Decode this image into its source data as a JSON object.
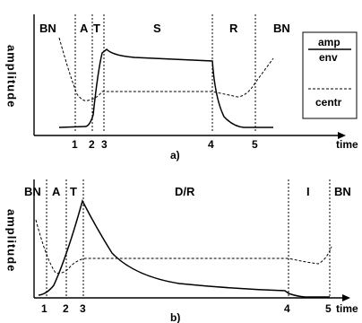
{
  "panels": [
    {
      "caption": "a)",
      "x_axis_label": "time",
      "y_axis_label": "amplitude",
      "segments": [
        "BN",
        "A",
        "T",
        "S",
        "R",
        "BN"
      ],
      "markers": [
        "1",
        "2",
        "3",
        "4",
        "5"
      ],
      "legend": {
        "top": "amp",
        "middle": "env",
        "bottom": "centr"
      }
    },
    {
      "caption": "b)",
      "x_axis_label": "time",
      "y_axis_label": "amplitude",
      "segments": [
        "BN",
        "A",
        "T",
        "D/R",
        "I",
        "BN"
      ],
      "markers": [
        "1",
        "2",
        "3",
        "4",
        "5"
      ]
    }
  ]
}
